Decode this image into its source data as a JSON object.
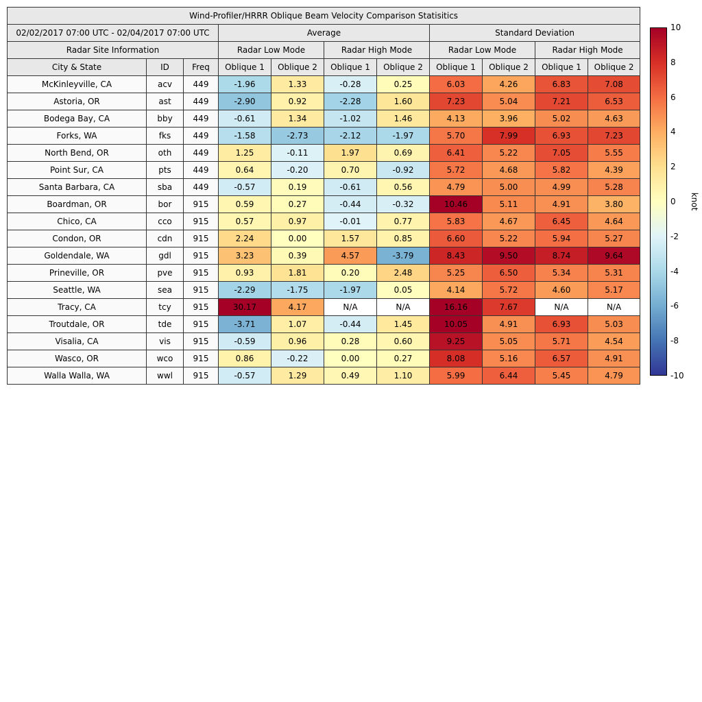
{
  "figure": {
    "background": "#ffffff"
  },
  "table": {
    "title": "Wind-Profiler/HRRR Oblique Beam Velocity Comparison Statisitics",
    "date_range": "02/02/2017 07:00 UTC - 02/04/2017 07:00 UTC",
    "site_info_header": "Radar Site Information",
    "group_headers": [
      "Average",
      "Standard Deviation"
    ],
    "mode_headers": [
      "Radar Low Mode",
      "Radar High Mode",
      "Radar Low Mode",
      "Radar High Mode"
    ],
    "column_headers": [
      "City & State",
      "ID",
      "Freq",
      "Oblique 1",
      "Oblique 2",
      "Oblique 1",
      "Oblique 2",
      "Oblique 1",
      "Oblique 2",
      "Oblique 1",
      "Oblique 2"
    ]
  },
  "chart_data": {
    "type": "heatmap",
    "title": "Wind-Profiler/HRRR Oblique Beam Velocity Comparison Statisitics",
    "subtitle": "02/02/2017 07:00 UTC - 02/04/2017 07:00 UTC",
    "colormap": "RdYlBu_r",
    "color_range": [
      -10,
      10
    ],
    "colorbar_label": "knot",
    "colorbar_ticks": [
      10,
      8,
      6,
      4,
      2,
      0,
      -2,
      -4,
      -6,
      -8,
      -10
    ],
    "value_columns": [
      "Avg Low Oblique 1",
      "Avg Low Oblique 2",
      "Avg High Oblique 1",
      "Avg High Oblique 2",
      "Std Low Oblique 1",
      "Std Low Oblique 2",
      "Std High Oblique 1",
      "Std High Oblique 2"
    ],
    "na_color": "#ffffff",
    "rows": [
      {
        "city": "McKinleyville, CA",
        "id": "acv",
        "freq": "449",
        "values": [
          "-1.96",
          "1.33",
          "-0.28",
          "0.25",
          "6.03",
          "4.26",
          "6.83",
          "7.08"
        ]
      },
      {
        "city": "Astoria, OR",
        "id": "ast",
        "freq": "449",
        "values": [
          "-2.90",
          "0.92",
          "-2.28",
          "1.60",
          "7.23",
          "5.04",
          "7.21",
          "6.53"
        ]
      },
      {
        "city": "Bodega Bay, CA",
        "id": "bby",
        "freq": "449",
        "values": [
          "-0.61",
          "1.34",
          "-1.02",
          "1.46",
          "4.13",
          "3.96",
          "5.02",
          "4.63"
        ]
      },
      {
        "city": "Forks, WA",
        "id": "fks",
        "freq": "449",
        "values": [
          "-1.58",
          "-2.73",
          "-2.12",
          "-1.97",
          "5.70",
          "7.99",
          "6.93",
          "7.23"
        ]
      },
      {
        "city": "North Bend, OR",
        "id": "oth",
        "freq": "449",
        "values": [
          "1.25",
          "-0.11",
          "1.97",
          "0.69",
          "6.41",
          "5.22",
          "7.05",
          "5.55"
        ]
      },
      {
        "city": "Point Sur, CA",
        "id": "pts",
        "freq": "449",
        "values": [
          "0.64",
          "-0.20",
          "0.70",
          "-0.92",
          "5.72",
          "4.68",
          "5.82",
          "4.39"
        ]
      },
      {
        "city": "Santa Barbara, CA",
        "id": "sba",
        "freq": "449",
        "values": [
          "-0.57",
          "0.19",
          "-0.61",
          "0.56",
          "4.79",
          "5.00",
          "4.99",
          "5.28"
        ]
      },
      {
        "city": "Boardman, OR",
        "id": "bor",
        "freq": "915",
        "values": [
          "0.59",
          "0.27",
          "-0.44",
          "-0.32",
          "10.46",
          "5.11",
          "4.91",
          "3.80"
        ]
      },
      {
        "city": "Chico, CA",
        "id": "cco",
        "freq": "915",
        "values": [
          "0.57",
          "0.97",
          "-0.01",
          "0.77",
          "5.83",
          "4.67",
          "6.45",
          "4.64"
        ]
      },
      {
        "city": "Condon, OR",
        "id": "cdn",
        "freq": "915",
        "values": [
          "2.24",
          "0.00",
          "1.57",
          "0.85",
          "6.60",
          "5.22",
          "5.94",
          "5.27"
        ]
      },
      {
        "city": "Goldendale, WA",
        "id": "gdl",
        "freq": "915",
        "values": [
          "3.23",
          "0.39",
          "4.57",
          "-3.79",
          "8.43",
          "9.50",
          "8.74",
          "9.64"
        ]
      },
      {
        "city": "Prineville, OR",
        "id": "pve",
        "freq": "915",
        "values": [
          "0.93",
          "1.81",
          "0.20",
          "2.48",
          "5.25",
          "6.50",
          "5.34",
          "5.31"
        ]
      },
      {
        "city": "Seattle, WA",
        "id": "sea",
        "freq": "915",
        "values": [
          "-2.29",
          "-1.75",
          "-1.97",
          "0.05",
          "4.14",
          "5.72",
          "4.60",
          "5.17"
        ]
      },
      {
        "city": "Tracy, CA",
        "id": "tcy",
        "freq": "915",
        "values": [
          "30.17",
          "4.17",
          "N/A",
          "N/A",
          "16.16",
          "7.67",
          "N/A",
          "N/A"
        ]
      },
      {
        "city": "Troutdale, OR",
        "id": "tde",
        "freq": "915",
        "values": [
          "-3.71",
          "1.07",
          "-0.44",
          "1.45",
          "10.05",
          "4.91",
          "6.93",
          "5.03"
        ]
      },
      {
        "city": "Visalia, CA",
        "id": "vis",
        "freq": "915",
        "values": [
          "-0.59",
          "0.96",
          "0.28",
          "0.60",
          "9.25",
          "5.05",
          "5.71",
          "4.54"
        ]
      },
      {
        "city": "Wasco, OR",
        "id": "wco",
        "freq": "915",
        "values": [
          "0.86",
          "-0.22",
          "0.00",
          "0.27",
          "8.08",
          "5.16",
          "6.57",
          "4.91"
        ]
      },
      {
        "city": "Walla Walla, WA",
        "id": "wwl",
        "freq": "915",
        "values": [
          "-0.57",
          "1.29",
          "0.49",
          "1.10",
          "5.99",
          "6.44",
          "5.45",
          "4.79"
        ]
      }
    ]
  }
}
